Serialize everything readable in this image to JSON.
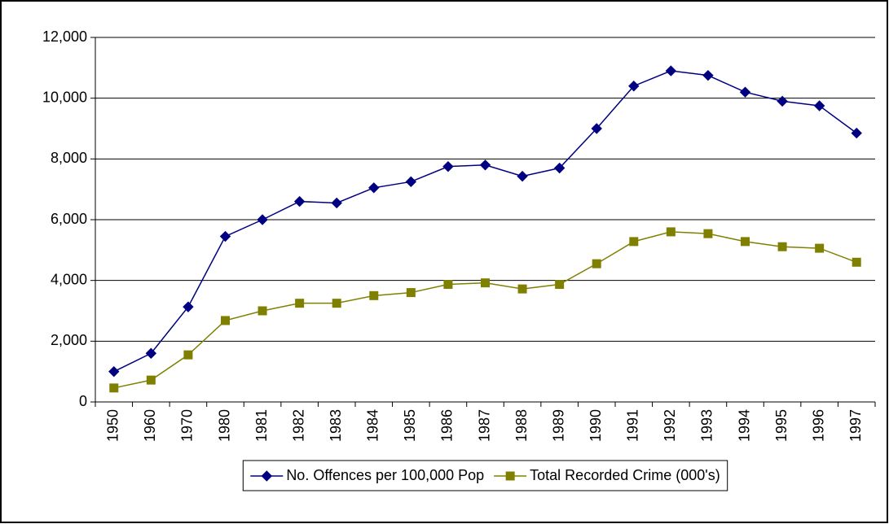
{
  "chart_data": {
    "type": "line",
    "categories": [
      "1950",
      "1960",
      "1970",
      "1980",
      "1981",
      "1982",
      "1983",
      "1984",
      "1985",
      "1986",
      "1987",
      "1988",
      "1989",
      "1990",
      "1991",
      "1992",
      "1993",
      "1994",
      "1995",
      "1996",
      "1997"
    ],
    "series": [
      {
        "name": "No. Offences per 100,000 Pop",
        "color": "#000080",
        "marker": "diamond",
        "values": [
          1000,
          1600,
          3130,
          5450,
          6000,
          6600,
          6550,
          7050,
          7250,
          7750,
          7800,
          7430,
          7700,
          9000,
          10400,
          10900,
          10750,
          10200,
          9900,
          9750,
          8850
        ]
      },
      {
        "name": "Total Recorded Crime (000's)",
        "color": "#808000",
        "marker": "square",
        "values": [
          460,
          720,
          1550,
          2680,
          3000,
          3250,
          3250,
          3500,
          3600,
          3870,
          3920,
          3720,
          3870,
          4550,
          5280,
          5600,
          5540,
          5280,
          5110,
          5060,
          4600
        ]
      }
    ],
    "ylim": [
      0,
      12000
    ],
    "yticks": [
      0,
      {
        "value": 2000,
        "label": "2,000"
      },
      {
        "value": 4000,
        "label": "4,000"
      },
      {
        "value": 6000,
        "label": "6,000"
      },
      {
        "value": 8000,
        "label": "8,000"
      },
      {
        "value": 10000,
        "label": "10,000"
      },
      {
        "value": 12000,
        "label": "12,000"
      }
    ],
    "grid": true,
    "legend": "bottom"
  }
}
